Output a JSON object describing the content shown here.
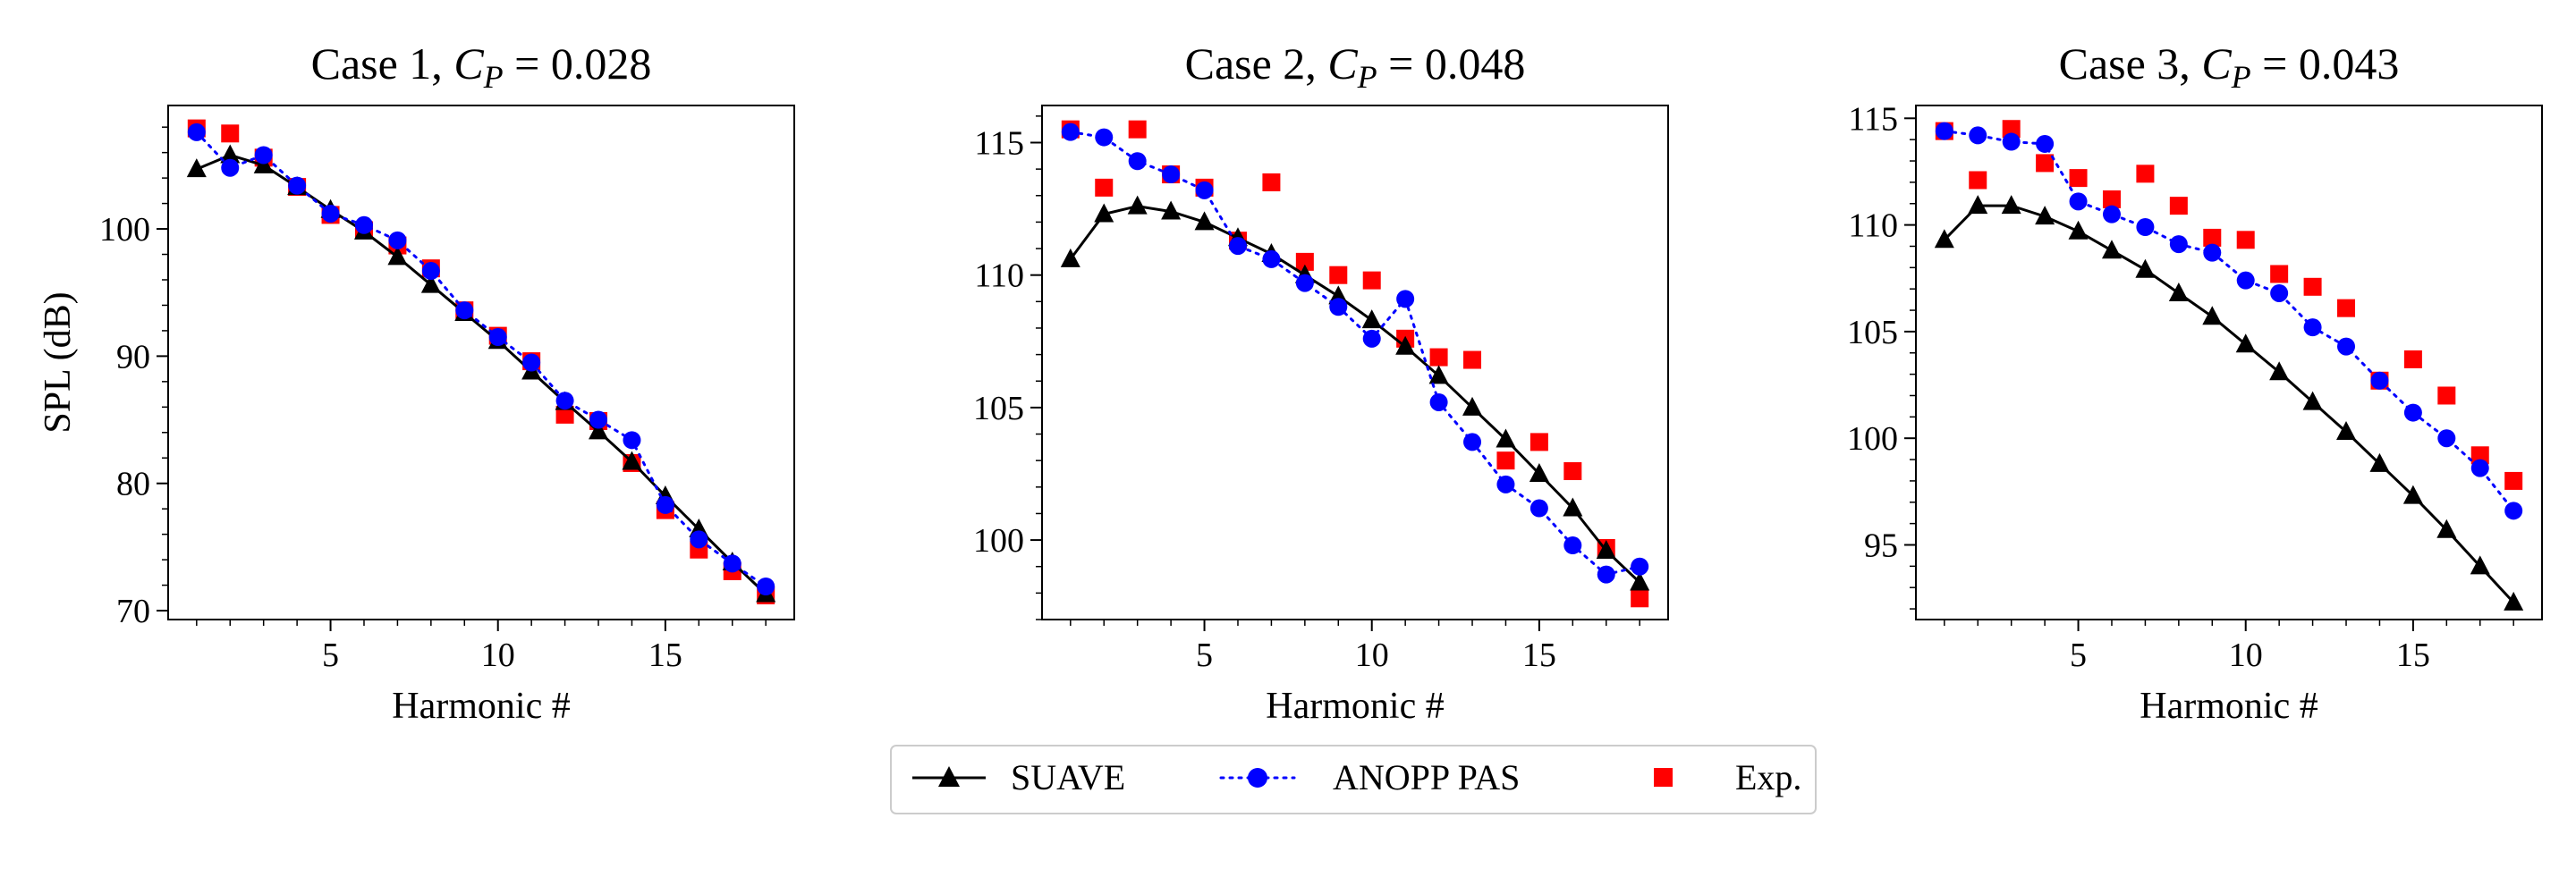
{
  "colors": {
    "suave": "#000000",
    "anopp": "#0000ff",
    "exp": "#ff0000"
  },
  "legend": {
    "suave": "SUAVE",
    "anopp": "ANOPP PAS",
    "exp": "Exp."
  },
  "chart_data": [
    {
      "type": "line",
      "title_prefix": "Case 1, ",
      "title_symbol": "C",
      "title_sub": "P",
      "title_value": " = 0.028",
      "xlabel": "Harmonic #",
      "ylabel": "SPL (dB)",
      "xlim": [
        0.15,
        18.85
      ],
      "ylim": [
        69.3,
        109.7
      ],
      "xticks": [
        5,
        10,
        15
      ],
      "yticks": [
        70,
        80,
        90,
        100
      ],
      "x": [
        1,
        2,
        3,
        4,
        5,
        6,
        7,
        8,
        9,
        10,
        11,
        12,
        13,
        14,
        15,
        16,
        17,
        18
      ],
      "series": [
        {
          "key": "suave",
          "name": "SUAVE",
          "marker": "triangle",
          "line": "solid",
          "values": [
            104.7,
            105.8,
            105.0,
            103.3,
            101.5,
            99.8,
            97.8,
            95.6,
            93.4,
            91.2,
            88.8,
            86.4,
            84.1,
            81.7,
            79.0,
            76.4,
            73.8,
            71.3
          ]
        },
        {
          "key": "anopp",
          "name": "ANOPP PAS",
          "marker": "circle",
          "line": "dotted",
          "values": [
            107.6,
            104.8,
            105.8,
            103.4,
            101.2,
            100.3,
            99.1,
            96.7,
            93.6,
            91.5,
            89.5,
            86.5,
            85.0,
            83.4,
            78.3,
            75.6,
            73.7,
            71.9
          ]
        },
        {
          "key": "exp",
          "name": "Exp.",
          "marker": "square",
          "line": "none",
          "values": [
            107.9,
            107.5,
            105.6,
            103.3,
            101.1,
            99.9,
            98.7,
            96.9,
            93.6,
            91.6,
            89.6,
            85.4,
            84.9,
            81.6,
            77.9,
            74.8,
            73.1,
            71.2
          ]
        }
      ]
    },
    {
      "type": "line",
      "title_prefix": "Case 2, ",
      "title_symbol": "C",
      "title_sub": "P",
      "title_value": " = 0.048",
      "xlabel": "Harmonic #",
      "ylabel": "",
      "xlim": [
        0.15,
        18.85
      ],
      "ylim": [
        97.0,
        116.4
      ],
      "xticks": [
        5,
        10,
        15
      ],
      "yticks": [
        100,
        105,
        110,
        115
      ],
      "x": [
        1,
        2,
        3,
        4,
        5,
        6,
        7,
        8,
        9,
        10,
        11,
        12,
        13,
        14,
        15,
        16,
        17,
        18
      ],
      "series": [
        {
          "key": "suave",
          "name": "SUAVE",
          "marker": "triangle",
          "line": "solid",
          "values": [
            110.6,
            112.3,
            112.6,
            112.4,
            112.0,
            111.4,
            110.8,
            110.0,
            109.2,
            108.3,
            107.3,
            106.2,
            105.0,
            103.8,
            102.5,
            101.2,
            99.6,
            98.4
          ]
        },
        {
          "key": "anopp",
          "name": "ANOPP PAS",
          "marker": "circle",
          "line": "dotted",
          "values": [
            115.4,
            115.2,
            114.3,
            113.8,
            113.2,
            111.1,
            110.6,
            109.7,
            108.8,
            107.6,
            109.1,
            105.2,
            103.7,
            102.1,
            101.2,
            99.8,
            98.7,
            99.0
          ]
        },
        {
          "key": "exp",
          "name": "Exp.",
          "marker": "square",
          "line": "none",
          "values": [
            115.5,
            113.3,
            115.5,
            113.8,
            113.3,
            111.3,
            113.5,
            110.5,
            110.0,
            109.8,
            107.6,
            106.9,
            106.8,
            103.0,
            103.7,
            102.6,
            99.7,
            97.8
          ]
        }
      ]
    },
    {
      "type": "line",
      "title_prefix": "Case 3, ",
      "title_symbol": "C",
      "title_sub": "P",
      "title_value": " = 0.043",
      "xlabel": "Harmonic #",
      "ylabel": "",
      "xlim": [
        0.15,
        18.85
      ],
      "ylim": [
        91.5,
        115.6
      ],
      "xticks": [
        5,
        10,
        15
      ],
      "yticks": [
        95,
        100,
        105,
        110,
        115
      ],
      "x": [
        1,
        2,
        3,
        4,
        5,
        6,
        7,
        8,
        9,
        10,
        11,
        12,
        13,
        14,
        15,
        16,
        17,
        18
      ],
      "series": [
        {
          "key": "suave",
          "name": "SUAVE",
          "marker": "triangle",
          "line": "solid",
          "values": [
            109.3,
            110.9,
            110.9,
            110.4,
            109.7,
            108.8,
            107.9,
            106.8,
            105.7,
            104.4,
            103.1,
            101.7,
            100.3,
            98.8,
            97.3,
            95.7,
            94.0,
            92.3
          ]
        },
        {
          "key": "anopp",
          "name": "ANOPP PAS",
          "marker": "circle",
          "line": "dotted",
          "values": [
            114.4,
            114.2,
            113.9,
            113.8,
            111.1,
            110.5,
            109.9,
            109.1,
            108.7,
            107.4,
            106.8,
            105.2,
            104.3,
            102.7,
            101.2,
            100.0,
            98.6,
            96.6
          ]
        },
        {
          "key": "exp",
          "name": "Exp.",
          "marker": "square",
          "line": "none",
          "values": [
            114.4,
            112.1,
            114.5,
            112.9,
            112.2,
            111.2,
            112.4,
            110.9,
            109.4,
            109.3,
            107.7,
            107.1,
            106.1,
            102.7,
            103.7,
            102.0,
            99.2,
            98.0
          ]
        }
      ]
    }
  ]
}
